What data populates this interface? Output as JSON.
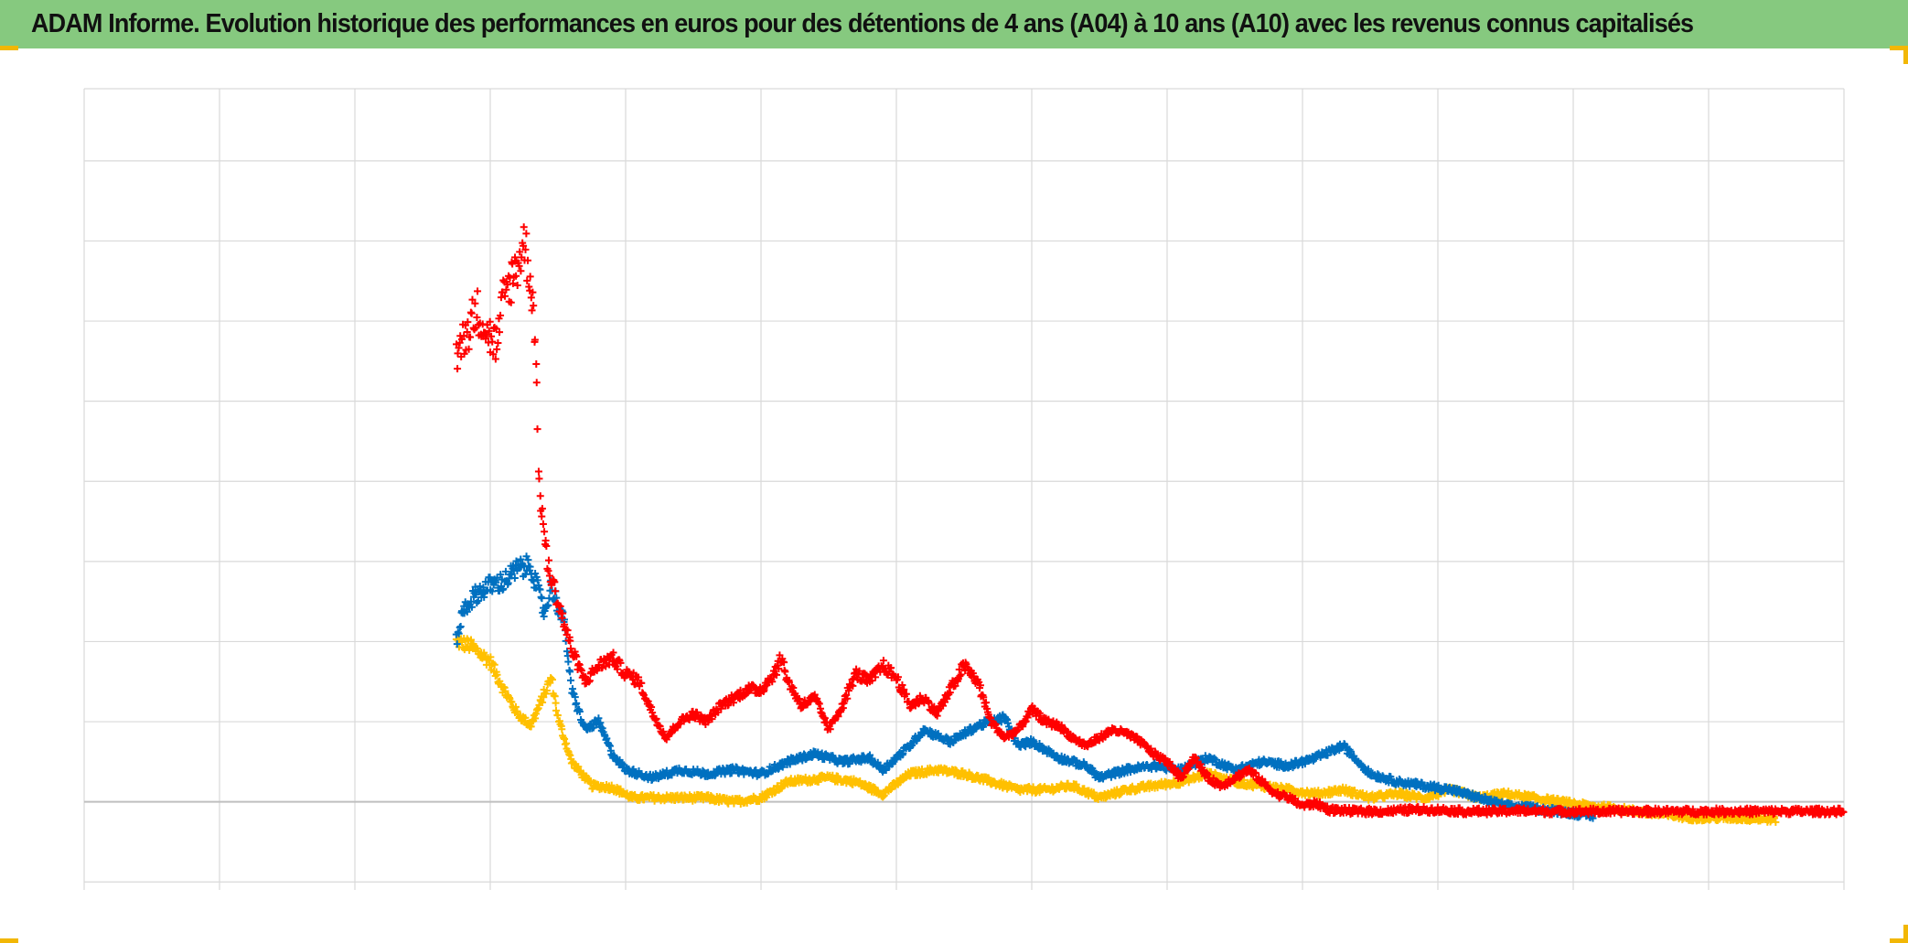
{
  "title": "ADAM Informe. Evolution historique des performances en euros pour des détentions de 4 ans (A04) à 10 ans (A10) avec les revenus connus capitalisés",
  "colors": {
    "title_bar": "#86c97f",
    "grid": "#d9d9d9",
    "zero_line": "#bfbfbf",
    "corner_marks": "#f2b705"
  },
  "chart_data": {
    "type": "scatter",
    "marker": "plus",
    "grid": true,
    "legend": "none",
    "xlim": [
      0,
      13
    ],
    "ylim": [
      -1.1,
      8.9
    ],
    "x_gridlines": [
      0,
      1,
      2,
      3,
      4,
      5,
      6,
      7,
      8,
      9,
      10,
      11,
      12,
      13
    ],
    "y_gridlines": [
      -1,
      0,
      1,
      2,
      3,
      4,
      5,
      6,
      7,
      8,
      8.9
    ],
    "zero_line": 0,
    "series": [
      {
        "color": "#ffc000",
        "x_range": [
          2.75,
          12.5
        ],
        "anchors": [
          [
            2.75,
            2.0
          ],
          [
            2.85,
            1.95
          ],
          [
            3.0,
            1.75
          ],
          [
            3.1,
            1.4
          ],
          [
            3.2,
            1.1
          ],
          [
            3.3,
            0.95
          ],
          [
            3.45,
            1.55
          ],
          [
            3.5,
            1.05
          ],
          [
            3.6,
            0.5
          ],
          [
            3.75,
            0.2
          ],
          [
            3.9,
            0.18
          ],
          [
            4.05,
            0.05
          ],
          [
            4.3,
            0.05
          ],
          [
            4.6,
            0.05
          ],
          [
            4.8,
            0.0
          ],
          [
            5.0,
            0.05
          ],
          [
            5.2,
            0.25
          ],
          [
            5.5,
            0.3
          ],
          [
            5.7,
            0.25
          ],
          [
            5.9,
            0.1
          ],
          [
            6.1,
            0.35
          ],
          [
            6.3,
            0.4
          ],
          [
            6.5,
            0.35
          ],
          [
            6.7,
            0.25
          ],
          [
            6.9,
            0.15
          ],
          [
            7.1,
            0.15
          ],
          [
            7.3,
            0.2
          ],
          [
            7.5,
            0.05
          ],
          [
            7.7,
            0.15
          ],
          [
            7.9,
            0.2
          ],
          [
            8.1,
            0.25
          ],
          [
            8.3,
            0.35
          ],
          [
            8.5,
            0.25
          ],
          [
            8.7,
            0.2
          ],
          [
            8.9,
            0.15
          ],
          [
            9.1,
            0.1
          ],
          [
            9.3,
            0.15
          ],
          [
            9.5,
            0.05
          ],
          [
            9.7,
            0.1
          ],
          [
            9.9,
            0.05
          ],
          [
            10.1,
            0.15
          ],
          [
            10.3,
            0.05
          ],
          [
            10.5,
            0.1
          ],
          [
            10.7,
            0.05
          ],
          [
            10.9,
            0.0
          ],
          [
            11.1,
            -0.05
          ],
          [
            11.3,
            -0.08
          ],
          [
            11.6,
            -0.15
          ],
          [
            11.9,
            -0.2
          ],
          [
            12.2,
            -0.2
          ],
          [
            12.5,
            -0.22
          ]
        ]
      },
      {
        "color": "#0070c0",
        "x_range": [
          2.75,
          11.15
        ],
        "anchors": [
          [
            2.75,
            2.0
          ],
          [
            2.8,
            2.4
          ],
          [
            2.9,
            2.6
          ],
          [
            3.0,
            2.7
          ],
          [
            3.1,
            2.75
          ],
          [
            3.2,
            2.9
          ],
          [
            3.3,
            2.95
          ],
          [
            3.4,
            2.35
          ],
          [
            3.45,
            2.7
          ],
          [
            3.55,
            2.2
          ],
          [
            3.6,
            1.4
          ],
          [
            3.7,
            0.9
          ],
          [
            3.8,
            1.0
          ],
          [
            3.9,
            0.6
          ],
          [
            4.0,
            0.4
          ],
          [
            4.1,
            0.35
          ],
          [
            4.2,
            0.3
          ],
          [
            4.4,
            0.4
          ],
          [
            4.6,
            0.35
          ],
          [
            4.8,
            0.4
          ],
          [
            5.0,
            0.35
          ],
          [
            5.2,
            0.5
          ],
          [
            5.4,
            0.6
          ],
          [
            5.6,
            0.5
          ],
          [
            5.8,
            0.55
          ],
          [
            5.9,
            0.4
          ],
          [
            6.1,
            0.7
          ],
          [
            6.2,
            0.9
          ],
          [
            6.4,
            0.75
          ],
          [
            6.6,
            0.95
          ],
          [
            6.8,
            1.05
          ],
          [
            6.9,
            0.7
          ],
          [
            7.0,
            0.75
          ],
          [
            7.2,
            0.55
          ],
          [
            7.4,
            0.45
          ],
          [
            7.5,
            0.3
          ],
          [
            7.7,
            0.4
          ],
          [
            7.9,
            0.45
          ],
          [
            8.1,
            0.4
          ],
          [
            8.3,
            0.55
          ],
          [
            8.5,
            0.4
          ],
          [
            8.7,
            0.5
          ],
          [
            8.9,
            0.45
          ],
          [
            9.1,
            0.55
          ],
          [
            9.3,
            0.7
          ],
          [
            9.5,
            0.35
          ],
          [
            9.7,
            0.25
          ],
          [
            9.9,
            0.2
          ],
          [
            10.1,
            0.15
          ],
          [
            10.3,
            0.05
          ],
          [
            10.5,
            -0.05
          ],
          [
            10.7,
            -0.08
          ],
          [
            10.9,
            -0.12
          ],
          [
            11.15,
            -0.18
          ]
        ]
      },
      {
        "color": "#ff0000",
        "x_range": [
          2.75,
          13.0
        ],
        "anchors": [
          [
            2.75,
            5.6
          ],
          [
            2.8,
            5.75
          ],
          [
            2.9,
            6.15
          ],
          [
            3.0,
            5.8
          ],
          [
            3.05,
            5.7
          ],
          [
            3.1,
            6.3
          ],
          [
            3.2,
            6.7
          ],
          [
            3.25,
            7.0
          ],
          [
            3.3,
            6.5
          ],
          [
            3.33,
            5.9
          ],
          [
            3.36,
            4.0
          ],
          [
            3.42,
            3.0
          ],
          [
            3.5,
            2.5
          ],
          [
            3.55,
            2.2
          ],
          [
            3.6,
            1.9
          ],
          [
            3.7,
            1.5
          ],
          [
            3.8,
            1.7
          ],
          [
            3.9,
            1.8
          ],
          [
            4.0,
            1.6
          ],
          [
            4.1,
            1.5
          ],
          [
            4.2,
            1.1
          ],
          [
            4.3,
            0.8
          ],
          [
            4.4,
            1.0
          ],
          [
            4.5,
            1.1
          ],
          [
            4.6,
            1.0
          ],
          [
            4.7,
            1.2
          ],
          [
            4.8,
            1.3
          ],
          [
            4.9,
            1.4
          ],
          [
            5.0,
            1.4
          ],
          [
            5.1,
            1.6
          ],
          [
            5.15,
            1.8
          ],
          [
            5.2,
            1.5
          ],
          [
            5.3,
            1.2
          ],
          [
            5.4,
            1.3
          ],
          [
            5.5,
            0.9
          ],
          [
            5.6,
            1.2
          ],
          [
            5.7,
            1.6
          ],
          [
            5.8,
            1.5
          ],
          [
            5.9,
            1.7
          ],
          [
            6.0,
            1.55
          ],
          [
            6.1,
            1.2
          ],
          [
            6.2,
            1.3
          ],
          [
            6.3,
            1.1
          ],
          [
            6.4,
            1.4
          ],
          [
            6.5,
            1.7
          ],
          [
            6.6,
            1.5
          ],
          [
            6.7,
            1.0
          ],
          [
            6.8,
            0.8
          ],
          [
            6.9,
            0.9
          ],
          [
            7.0,
            1.15
          ],
          [
            7.1,
            1.0
          ],
          [
            7.2,
            0.95
          ],
          [
            7.3,
            0.8
          ],
          [
            7.4,
            0.7
          ],
          [
            7.5,
            0.8
          ],
          [
            7.6,
            0.9
          ],
          [
            7.7,
            0.85
          ],
          [
            7.8,
            0.75
          ],
          [
            7.9,
            0.6
          ],
          [
            8.0,
            0.5
          ],
          [
            8.1,
            0.3
          ],
          [
            8.2,
            0.55
          ],
          [
            8.3,
            0.3
          ],
          [
            8.4,
            0.2
          ],
          [
            8.5,
            0.3
          ],
          [
            8.6,
            0.4
          ],
          [
            8.7,
            0.25
          ],
          [
            8.8,
            0.1
          ],
          [
            8.9,
            0.05
          ],
          [
            9.0,
            -0.05
          ],
          [
            9.1,
            -0.02
          ],
          [
            9.2,
            -0.1
          ],
          [
            9.4,
            -0.12
          ],
          [
            9.6,
            -0.12
          ],
          [
            9.8,
            -0.1
          ],
          [
            10.0,
            -0.1
          ],
          [
            10.2,
            -0.12
          ],
          [
            10.4,
            -0.12
          ],
          [
            10.6,
            -0.11
          ],
          [
            10.8,
            -0.12
          ],
          [
            11.0,
            -0.12
          ],
          [
            11.4,
            -0.12
          ],
          [
            11.8,
            -0.12
          ],
          [
            12.2,
            -0.12
          ],
          [
            12.6,
            -0.12
          ],
          [
            13.0,
            -0.12
          ]
        ]
      }
    ]
  }
}
